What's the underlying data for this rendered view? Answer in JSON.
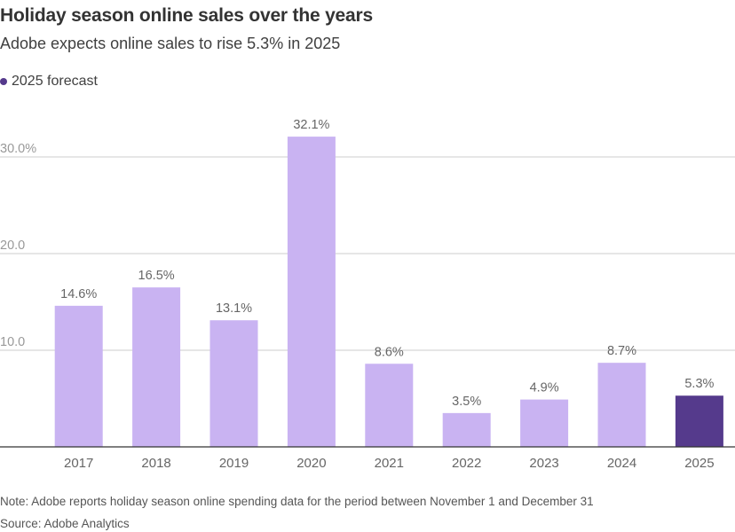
{
  "header": {
    "title": "Holiday season online sales over the years",
    "subtitle": "Adobe expects online sales to rise 5.3% in 2025"
  },
  "legend": {
    "label": "2025 forecast",
    "color": "#553a8c"
  },
  "colors": {
    "actual": "#c9b3f2",
    "forecast": "#553a8c",
    "grid": "#cccccc",
    "axis": "#333333",
    "label": "#666666"
  },
  "chart_data": {
    "type": "bar",
    "title": "Holiday season online sales over the years",
    "xlabel": "",
    "ylabel": "",
    "ylim": [
      0,
      32.1
    ],
    "yticks": [
      10,
      20,
      30
    ],
    "ytick_labels": [
      "10.0",
      "20.0",
      "30.0%"
    ],
    "categories": [
      "2017",
      "2018",
      "2019",
      "2020",
      "2021",
      "2022",
      "2023",
      "2024",
      "2025"
    ],
    "values": [
      14.6,
      16.5,
      13.1,
      32.1,
      8.6,
      3.5,
      4.9,
      8.7,
      5.3
    ],
    "data_labels": [
      "14.6%",
      "16.5%",
      "13.1%",
      "32.1%",
      "8.6%",
      "3.5%",
      "4.9%",
      "8.7%",
      "5.3%"
    ],
    "forecast": [
      false,
      false,
      false,
      false,
      false,
      false,
      false,
      false,
      true
    ],
    "grid": true,
    "legend_position": "top-left"
  },
  "footer": {
    "note": "Note: Adobe reports holiday season online spending data for the period between November 1 and December 31",
    "source": "Source: Adobe Analytics"
  }
}
